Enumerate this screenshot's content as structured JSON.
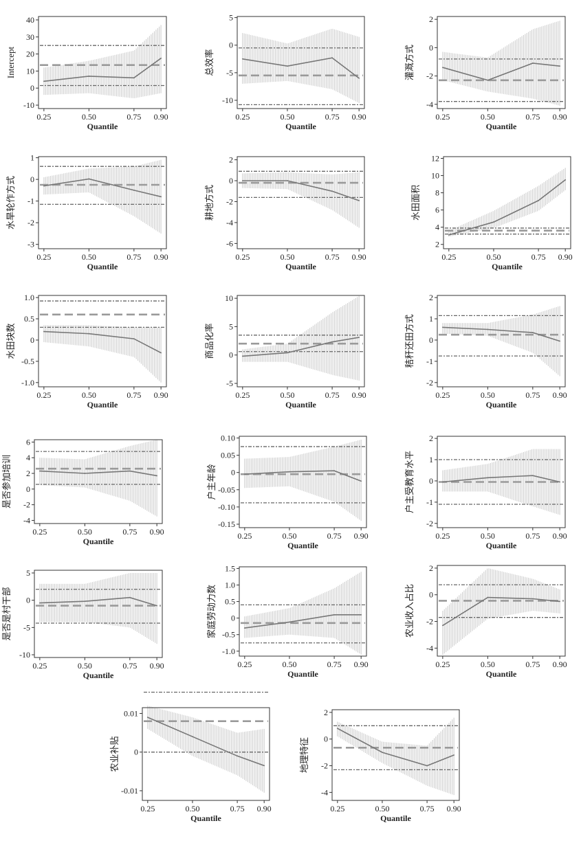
{
  "colors": {
    "band": "#cfcfcf",
    "line": "#777777",
    "axis": "#333333",
    "ref": "#666666",
    "mean": "#9a9a9a"
  },
  "chart_data": [
    {
      "type": "line",
      "ylabel": "Intercept",
      "xlabel": "Quantile",
      "x_ticks": [
        "0.25",
        "0.50",
        "0.75",
        "0.90"
      ],
      "y_ticks": [
        -10,
        0,
        10,
        20,
        30,
        40
      ],
      "ylim": [
        -12,
        42
      ],
      "x": [
        0.25,
        0.5,
        0.75,
        0.9
      ],
      "y": [
        4,
        7,
        6,
        17.5
      ],
      "ci_low": [
        -4,
        -3,
        -6,
        -3
      ],
      "ci_high": [
        12,
        16,
        22,
        37
      ],
      "ref_upper": 25,
      "ref_mean": 13.5,
      "ref_lower": 1.5
    },
    {
      "type": "line",
      "ylabel": "总效率",
      "xlabel": "Quantile",
      "x_ticks": [
        "0.25",
        "0.50",
        "0.75",
        "0.90"
      ],
      "y_ticks": [
        -10,
        -5,
        0,
        5
      ],
      "ylim": [
        -11.5,
        5.2
      ],
      "x": [
        0.25,
        0.5,
        0.75,
        0.9
      ],
      "y": [
        -2.5,
        -3.8,
        -2.3,
        -6
      ],
      "ci_low": [
        -7,
        -6.5,
        -8,
        -10.5
      ],
      "ci_high": [
        2.2,
        0.3,
        3,
        1.5
      ],
      "ref_upper": -0.5,
      "ref_mean": -5.5,
      "ref_lower": -10.8
    },
    {
      "type": "line",
      "ylabel": "灌溉方式",
      "xlabel": "Quantile",
      "x_ticks": [
        "0.25",
        "0.50",
        "0.75",
        "0.90"
      ],
      "y_ticks": [
        -4,
        -2,
        0,
        2
      ],
      "ylim": [
        -4.3,
        2.2
      ],
      "x": [
        0.25,
        0.5,
        0.75,
        0.9
      ],
      "y": [
        -1.4,
        -2.3,
        -1.1,
        -1.3
      ],
      "ci_low": [
        -2.3,
        -3.1,
        -3.6,
        -4.1
      ],
      "ci_high": [
        -0.3,
        -0.7,
        1.3,
        1.9
      ],
      "ref_upper": -0.8,
      "ref_mean": -2.3,
      "ref_lower": -3.8
    },
    {
      "type": "line",
      "ylabel": "水旱轮作方式",
      "xlabel": "Quantile",
      "x_ticks": [
        "0.25",
        "0.50",
        "0.75",
        "0.90"
      ],
      "y_ticks": [
        -3,
        -2,
        -1,
        0,
        1
      ],
      "ylim": [
        -3.2,
        1.05
      ],
      "x": [
        0.25,
        0.5,
        0.75,
        0.9
      ],
      "y": [
        -0.3,
        0.02,
        -0.5,
        -0.8
      ],
      "ci_low": [
        -0.7,
        -0.6,
        -1.7,
        -2.5
      ],
      "ci_high": [
        0.1,
        0.5,
        0.6,
        0.9
      ],
      "ref_upper": 0.6,
      "ref_mean": -0.25,
      "ref_lower": -1.15
    },
    {
      "type": "line",
      "ylabel": "耕地方式",
      "xlabel": "Quantile",
      "x_ticks": [
        "0.25",
        "0.50",
        "0.75",
        "0.90"
      ],
      "y_ticks": [
        -6,
        -4,
        -2,
        0,
        2
      ],
      "ylim": [
        -6.5,
        2.3
      ],
      "x": [
        0.25,
        0.5,
        0.75,
        0.9
      ],
      "y": [
        0,
        0,
        -1,
        -1.9
      ],
      "ci_low": [
        -0.7,
        -0.8,
        -2.8,
        -4.5
      ],
      "ci_high": [
        0.7,
        0.8,
        0.6,
        0.8
      ],
      "ref_upper": 0.9,
      "ref_mean": -0.2,
      "ref_lower": -1.6
    },
    {
      "type": "line",
      "ylabel": "水田面积",
      "xlabel": "Quantile",
      "x_ticks": [
        "0.25",
        "0.50",
        "0.75",
        "0.90"
      ],
      "y_ticks": [
        2,
        4,
        6,
        8,
        10,
        12
      ],
      "ylim": [
        1.5,
        12.2
      ],
      "x": [
        0.25,
        0.5,
        0.75,
        0.9
      ],
      "y": [
        3.1,
        4.6,
        7.1,
        9.5
      ],
      "ci_low": [
        2.9,
        3.9,
        5.9,
        8.3
      ],
      "ci_high": [
        3.6,
        5.9,
        8.8,
        10.9
      ],
      "ref_upper": 3.9,
      "ref_mean": 3.6,
      "ref_lower": 3.2
    },
    {
      "type": "line",
      "ylabel": "水田块数",
      "xlabel": "Quantile",
      "x_ticks": [
        "0.25",
        "0.50",
        "0.75",
        "0.90"
      ],
      "y_ticks": [
        -1.0,
        -0.5,
        0,
        0.5,
        1.0
      ],
      "y_tick_labels": [
        "-1.0",
        "-0.5",
        "0",
        "0.5",
        "1.0"
      ],
      "ylim": [
        -1.1,
        1.05
      ],
      "x": [
        0.25,
        0.5,
        0.75,
        0.9
      ],
      "y": [
        0.2,
        0.15,
        0.03,
        -0.3
      ],
      "ci_low": [
        -0.05,
        -0.15,
        -0.4,
        -1.0
      ],
      "ci_high": [
        0.35,
        0.35,
        0.3,
        0.3
      ],
      "ref_upper": 0.92,
      "ref_mean": 0.6,
      "ref_lower": 0.3
    },
    {
      "type": "line",
      "ylabel": "商品化率",
      "xlabel": "Quantile",
      "x_ticks": [
        "0.25",
        "0.50",
        "0.75",
        "0.90"
      ],
      "y_ticks": [
        -5,
        0,
        5,
        10
      ],
      "ylim": [
        -5.6,
        10.5
      ],
      "x": [
        0.25,
        0.5,
        0.75,
        0.9
      ],
      "y": [
        -0.2,
        0.4,
        2.3,
        3.1
      ],
      "ci_low": [
        -1.2,
        -1.2,
        -3.5,
        -4.5
      ],
      "ci_high": [
        1,
        2,
        7.5,
        10.4
      ],
      "ref_upper": 3.5,
      "ref_mean": 2,
      "ref_lower": 0.6
    },
    {
      "type": "line",
      "ylabel": "秸秆还田方式",
      "xlabel": "Quantile",
      "x_ticks": [
        "0.25",
        "0.50",
        "0.75",
        "0.90"
      ],
      "y_ticks": [
        -2,
        -1,
        0,
        1,
        2
      ],
      "ylim": [
        -2.2,
        2.1
      ],
      "x": [
        0.25,
        0.5,
        0.75,
        0.9
      ],
      "y": [
        0.6,
        0.5,
        0.35,
        -0.05
      ],
      "ci_low": [
        0.3,
        0.2,
        -0.6,
        -1.7
      ],
      "ci_high": [
        0.8,
        0.8,
        1.2,
        1.6
      ],
      "ref_upper": 1.15,
      "ref_mean": 0.25,
      "ref_lower": -0.75
    },
    {
      "type": "line",
      "ylabel": "是否参加培训",
      "xlabel": "Quantile",
      "x_ticks": [
        "0.25",
        "0.50",
        "0.75",
        "0.90"
      ],
      "y_ticks": [
        -4,
        -2,
        0,
        2,
        4,
        6
      ],
      "ylim": [
        -4.4,
        6.3
      ],
      "x": [
        0.25,
        0.5,
        0.75,
        0.9
      ],
      "y": [
        2.3,
        2,
        2.3,
        1.7
      ],
      "ci_low": [
        0.5,
        0.2,
        -1.5,
        -3.5
      ],
      "ci_high": [
        4,
        3.8,
        5.5,
        6.3
      ],
      "ref_upper": 4.8,
      "ref_mean": 2.6,
      "ref_lower": 0.6
    },
    {
      "type": "line",
      "ylabel": "户主年龄",
      "xlabel": "Quantile",
      "x_ticks": [
        "0.25",
        "0.50",
        "0.75",
        "0.90"
      ],
      "y_ticks": [
        -0.15,
        -0.1,
        -0.05,
        0,
        0.05,
        0.1
      ],
      "y_tick_labels": [
        "-0.15",
        "-0.10",
        "-0.05",
        "0",
        "0.05",
        "0.10"
      ],
      "ylim": [
        -0.16,
        0.105
      ],
      "x": [
        0.25,
        0.5,
        0.75,
        0.9
      ],
      "y": [
        -0.005,
        0.002,
        0.005,
        -0.025
      ],
      "ci_low": [
        -0.045,
        -0.04,
        -0.085,
        -0.14
      ],
      "ci_high": [
        0.04,
        0.045,
        0.075,
        0.095
      ],
      "ref_upper": 0.075,
      "ref_mean": -0.005,
      "ref_lower": -0.088
    },
    {
      "type": "line",
      "ylabel": "户主受教育水平",
      "xlabel": "Quantile",
      "x_ticks": [
        "0.25",
        "0.50",
        "0.75",
        "0.90"
      ],
      "y_ticks": [
        -2,
        -1,
        0,
        1,
        2
      ],
      "ylim": [
        -2.2,
        2.1
      ],
      "x": [
        0.25,
        0.5,
        0.75,
        0.9
      ],
      "y": [
        -0.05,
        0.15,
        0.25,
        -0.05
      ],
      "ci_low": [
        -0.5,
        -0.5,
        -1.2,
        -1.6
      ],
      "ci_high": [
        0.5,
        0.8,
        1.5,
        1.5
      ],
      "ref_upper": 1,
      "ref_mean": -0.05,
      "ref_lower": -1.1
    },
    {
      "type": "line",
      "ylabel": "是否是村干部",
      "xlabel": "Quantile",
      "x_ticks": [
        "0.25",
        "0.50",
        "0.75",
        "0.90"
      ],
      "y_ticks": [
        -10,
        -5,
        0,
        5
      ],
      "ylim": [
        -10.5,
        5.5
      ],
      "x": [
        0.25,
        0.5,
        0.75,
        0.9
      ],
      "y": [
        -0.5,
        -0.2,
        0.5,
        -1
      ],
      "ci_low": [
        -4,
        -4,
        -5,
        -8
      ],
      "ci_high": [
        3,
        3,
        5,
        5
      ],
      "ref_upper": 2,
      "ref_mean": -1,
      "ref_lower": -4.2
    },
    {
      "type": "line",
      "ylabel": "家庭劳动力数",
      "xlabel": "Quantile",
      "x_ticks": [
        "0.25",
        "0.50",
        "0.75",
        "0.90"
      ],
      "y_ticks": [
        -1.0,
        -0.5,
        0,
        0.5,
        1.0,
        1.5
      ],
      "y_tick_labels": [
        "-1.0",
        "-0.5",
        "0",
        "0.5",
        "1.0",
        "1.5"
      ],
      "ylim": [
        -1.15,
        1.55
      ],
      "x": [
        0.25,
        0.5,
        0.75,
        0.9
      ],
      "y": [
        -0.3,
        -0.12,
        0.1,
        0.1
      ],
      "ci_low": [
        -0.6,
        -0.5,
        -0.6,
        -1.1
      ],
      "ci_high": [
        0.05,
        0.3,
        0.9,
        1.4
      ],
      "ref_upper": 0.4,
      "ref_mean": -0.15,
      "ref_lower": -0.75
    },
    {
      "type": "line",
      "ylabel": "农业收入占比",
      "xlabel": "Quantile",
      "x_ticks": [
        "0.25",
        "0.50",
        "0.75",
        "0.90"
      ],
      "y_ticks": [
        -4,
        -2,
        0,
        2
      ],
      "ylim": [
        -4.6,
        2.2
      ],
      "x": [
        0.25,
        0.5,
        0.75,
        0.9
      ],
      "y": [
        -2.3,
        -0.2,
        -0.3,
        -0.5
      ],
      "ci_low": [
        -4.5,
        -1.8,
        -1.2,
        -1.4
      ],
      "ci_high": [
        -1.2,
        2,
        1.2,
        0.4
      ],
      "ref_upper": 0.75,
      "ref_mean": -0.45,
      "ref_lower": -1.7
    },
    {
      "type": "line",
      "ylabel": "农业补贴",
      "xlabel": "Quantile",
      "x_ticks": [
        "0.25",
        "0.50",
        "0.75",
        "0.90"
      ],
      "y_ticks": [
        -0.01,
        0,
        0.01
      ],
      "y_tick_labels": [
        "-0.01",
        "0",
        "0.01"
      ],
      "ylim": [
        -0.0125,
        0.0115
      ],
      "x": [
        0.25,
        0.5,
        0.75,
        0.9
      ],
      "y": [
        0.009,
        0.004,
        -0.001,
        -0.0035
      ],
      "ci_low": [
        0.006,
        -0.001,
        -0.006,
        -0.0105
      ],
      "ci_high": [
        0.012,
        0.009,
        0.005,
        0.006
      ],
      "ref_upper": 0.0155,
      "ref_mean": 0.008,
      "ref_lower": 0
    },
    {
      "type": "line",
      "ylabel": "地理特征",
      "xlabel": "Quantile",
      "x_ticks": [
        "0.25",
        "0.50",
        "0.75",
        "0.90"
      ],
      "y_ticks": [
        -4,
        -2,
        0,
        2
      ],
      "ylim": [
        -4.6,
        2.2
      ],
      "x": [
        0.25,
        0.5,
        0.75,
        0.9
      ],
      "y": [
        0.8,
        -1,
        -2,
        -1.2
      ],
      "ci_low": [
        0.2,
        -1.8,
        -3.5,
        -4.2
      ],
      "ci_high": [
        1.3,
        -0.2,
        -0.5,
        1.6
      ],
      "ref_upper": 1,
      "ref_mean": -0.65,
      "ref_lower": -2.3
    }
  ]
}
